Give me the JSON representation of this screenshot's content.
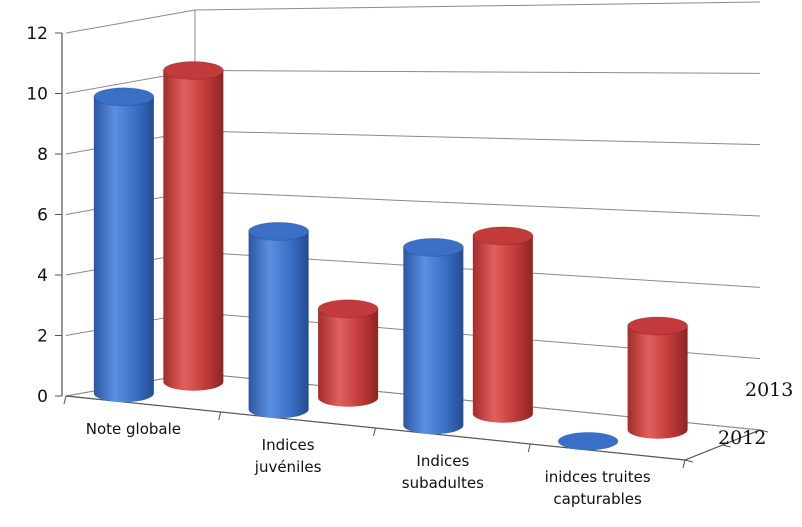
{
  "chart_data": {
    "type": "bar",
    "style": "3d-cylinder",
    "categories": [
      [
        "Note globale"
      ],
      [
        "Indices",
        "juvéniles"
      ],
      [
        "Indices",
        "subadultes"
      ],
      [
        "inidces truites",
        "capturables"
      ]
    ],
    "series": [
      {
        "name": "2012",
        "color": "#3a6fc6",
        "values": [
          10,
          6,
          6,
          0
        ]
      },
      {
        "name": "2013",
        "color": "#c23b3a",
        "values": [
          10.5,
          3,
          6,
          3.5
        ]
      }
    ],
    "y_ticks": [
      "0",
      "2",
      "4",
      "6",
      "8",
      "10",
      "12"
    ],
    "ylim": [
      0,
      12
    ],
    "grid": true
  }
}
